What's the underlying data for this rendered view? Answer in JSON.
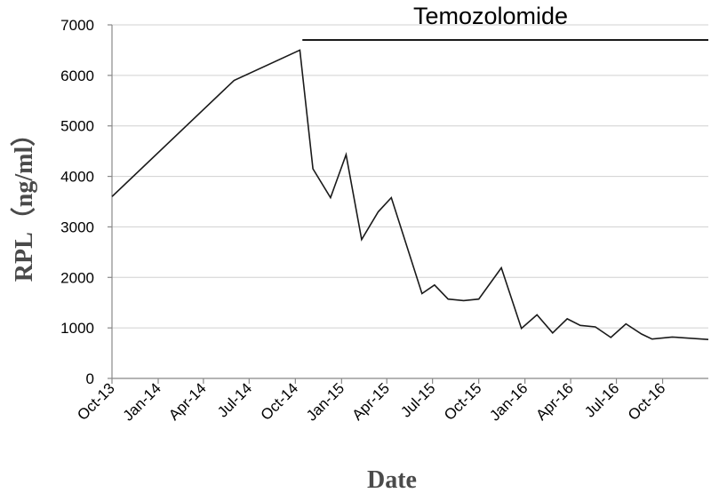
{
  "chart_data": {
    "type": "line",
    "title": "",
    "xlabel": "Date",
    "ylabel": "RPL（ng/ml）",
    "x_tick_labels": [
      "Oct-13",
      "Jan-14",
      "Apr-14",
      "Jul-14",
      "Oct-14",
      "Jan-15",
      "Apr-15",
      "Jul-15",
      "Oct-15",
      "Jan-16",
      "Apr-16",
      "Jul-16",
      "Oct-16"
    ],
    "y_tick_labels": [
      "0",
      "1000",
      "2000",
      "3000",
      "4000",
      "5000",
      "6000",
      "7000"
    ],
    "ylim": [
      0,
      7000
    ],
    "grid": true,
    "annotation": {
      "label": "Temozolomide",
      "x_start": "2014-10-15"
    },
    "series": [
      {
        "points": [
          {
            "x": "2013-10-01",
            "y": 3600
          },
          {
            "x": "2014-06-01",
            "y": 5900
          },
          {
            "x": "2014-10-10",
            "y": 6500
          },
          {
            "x": "2014-11-05",
            "y": 4150
          },
          {
            "x": "2014-12-10",
            "y": 3580
          },
          {
            "x": "2015-01-10",
            "y": 4430
          },
          {
            "x": "2015-02-10",
            "y": 2750
          },
          {
            "x": "2015-03-15",
            "y": 3300
          },
          {
            "x": "2015-04-10",
            "y": 3580
          },
          {
            "x": "2015-06-10",
            "y": 1680
          },
          {
            "x": "2015-07-05",
            "y": 1850
          },
          {
            "x": "2015-08-01",
            "y": 1570
          },
          {
            "x": "2015-09-01",
            "y": 1540
          },
          {
            "x": "2015-10-01",
            "y": 1570
          },
          {
            "x": "2015-11-15",
            "y": 2190
          },
          {
            "x": "2015-12-25",
            "y": 990
          },
          {
            "x": "2016-01-25",
            "y": 1260
          },
          {
            "x": "2016-02-25",
            "y": 900
          },
          {
            "x": "2016-03-25",
            "y": 1180
          },
          {
            "x": "2016-04-20",
            "y": 1050
          },
          {
            "x": "2016-05-20",
            "y": 1020
          },
          {
            "x": "2016-06-20",
            "y": 810
          },
          {
            "x": "2016-07-20",
            "y": 1080
          },
          {
            "x": "2016-08-20",
            "y": 880
          },
          {
            "x": "2016-09-10",
            "y": 780
          },
          {
            "x": "2016-10-20",
            "y": 820
          },
          {
            "x": "2016-12-31",
            "y": 770
          }
        ]
      }
    ]
  }
}
